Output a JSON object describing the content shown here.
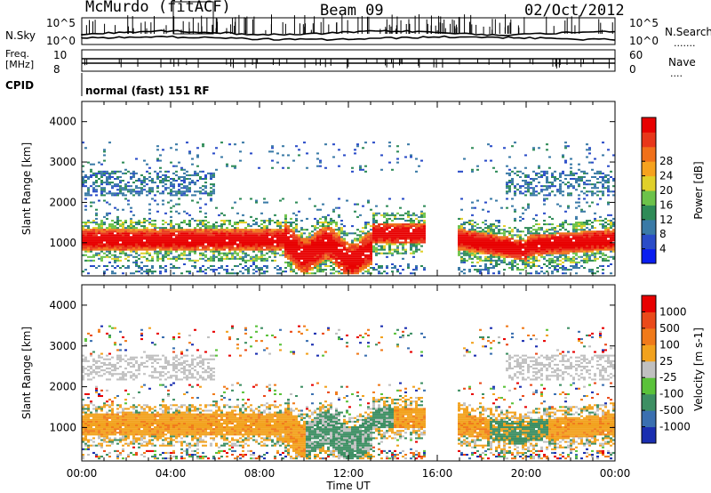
{
  "header": {
    "title": "McMurdo (fitACF)",
    "beam": "Beam 09",
    "date": "02/Oct/2012"
  },
  "summary_panel": {
    "nsky_label": "N.Sky",
    "nsearch_label": "N.Search",
    "freq_label_1": "Freq.",
    "freq_label_2": "[MHz]",
    "nave_label": "Nave",
    "cpid_label": "CPID",
    "cpid_value": "normal (fast) 151 RF",
    "log_ticks": [
      "10^5",
      "10^0"
    ],
    "freq_ticks": [
      "10",
      "8"
    ],
    "nave_ticks": [
      "60",
      "0"
    ]
  },
  "x_axis": {
    "label": "Time UT",
    "ticks": [
      "00:00",
      "04:00",
      "08:00",
      "12:00",
      "16:00",
      "20:00",
      "00:00"
    ]
  },
  "chart_data": [
    {
      "type": "heatmap",
      "quantity": "Power",
      "xlabel": "Time UT",
      "ylabel": "Slant Range [km]",
      "xlim_hours": [
        0,
        24
      ],
      "ylim_km": [
        180,
        4500
      ],
      "y_ticks": [
        1000,
        2000,
        3000,
        4000
      ],
      "colorbar": {
        "label": "Power [dB]",
        "ticks": [
          4,
          8,
          12,
          16,
          20,
          24,
          28
        ],
        "colors": [
          "#0a1ef0",
          "#2a4cc8",
          "#3a7aa6",
          "#2e8b57",
          "#6cc24a",
          "#e0d02a",
          "#f6a21e",
          "#f0701a",
          "#e8361a",
          "#e80000"
        ]
      }
    },
    {
      "type": "heatmap",
      "quantity": "Velocity",
      "xlabel": "Time UT",
      "ylabel": "Slant Range [km]",
      "xlim_hours": [
        0,
        24
      ],
      "ylim_km": [
        180,
        4500
      ],
      "y_ticks": [
        1000,
        2000,
        3000,
        4000
      ],
      "colorbar": {
        "label": "Velocity [m s-1]",
        "ticks": [
          "1000",
          "500",
          "100",
          "25",
          "-25",
          "-100",
          "-500",
          "-1000"
        ],
        "colors": [
          "#1a2eb0",
          "#3a6fb0",
          "#3d8f63",
          "#5ac23a",
          "#c0c0c0",
          "#f2a21e",
          "#f07a1a",
          "#ea4a1a",
          "#e80000"
        ]
      }
    }
  ]
}
